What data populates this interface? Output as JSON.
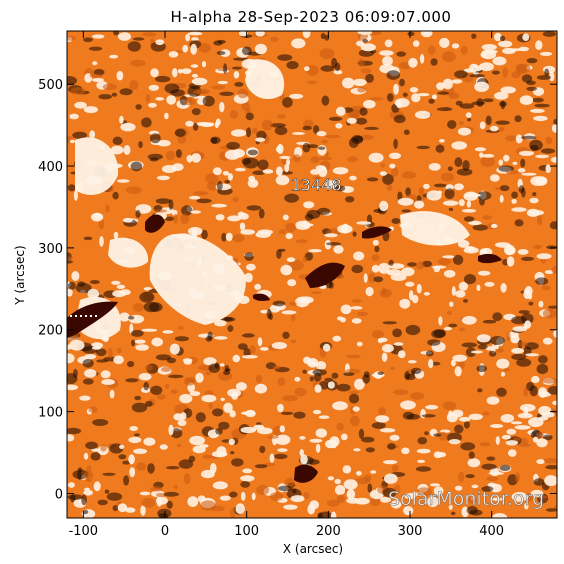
{
  "title": "H-alpha 28-Sep-2023 06:09:07.000",
  "x_axis": {
    "label": "X (arcsec)",
    "ticks": [
      -100,
      0,
      100,
      200,
      300,
      400
    ],
    "range": [
      -120,
      480
    ]
  },
  "y_axis": {
    "label": "Y (arcsec)",
    "ticks": [
      0,
      100,
      200,
      300,
      400,
      500
    ],
    "range": [
      -30,
      565
    ]
  },
  "region": {
    "label": "13448"
  },
  "watermark": "SolarMonitor.org",
  "colors": {
    "chromosphere_orange": "#f07a1e",
    "bright_plage": "#fff1e0",
    "dark_filament": "#3a0800",
    "frame": "#000000"
  }
}
